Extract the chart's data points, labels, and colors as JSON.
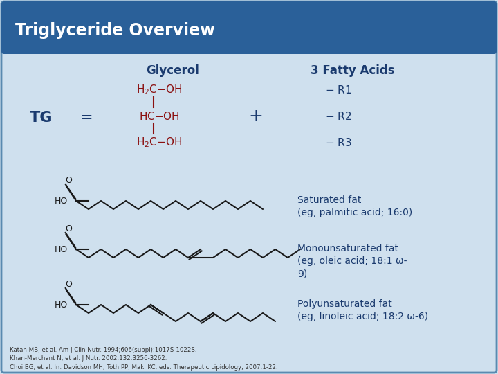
{
  "title": "Triglyceride Overview",
  "title_bg_color": "#2a6099",
  "title_text_color": "#ffffff",
  "slide_bg_color": "#cfe0ee",
  "slide_border_color": "#5a8ab0",
  "glycerol_label": "Glycerol",
  "fatty_acids_label": "3 Fatty Acids",
  "tg_label": "TG",
  "equals_label": "=",
  "plus_label": "+",
  "sat_fat_label": "Saturated fat\n(eg, palmitic acid; 16:0)",
  "mono_fat_label": "Monounsaturated fat\n(eg, oleic acid; 18:1 ω-\n9)",
  "poly_fat_label": "Polyunsaturated fat\n(eg, linoleic acid; 18:2 ω-6)",
  "red_color": "#8b1010",
  "dark_blue": "#1a3a6e",
  "chain_color": "#1a1a1a",
  "ref_text": "Katan MB, et al. Am J Clin Nutr. 1994;606(suppl):1017S-1022S.\nKhan-Merchant N, et al. J Nutr. 2002;132:3256-3262.\nChoi BG, et al. In: Davidson MH, Toth PP, Maki KC, eds. Therapeutic Lipidology, 2007:1-22."
}
